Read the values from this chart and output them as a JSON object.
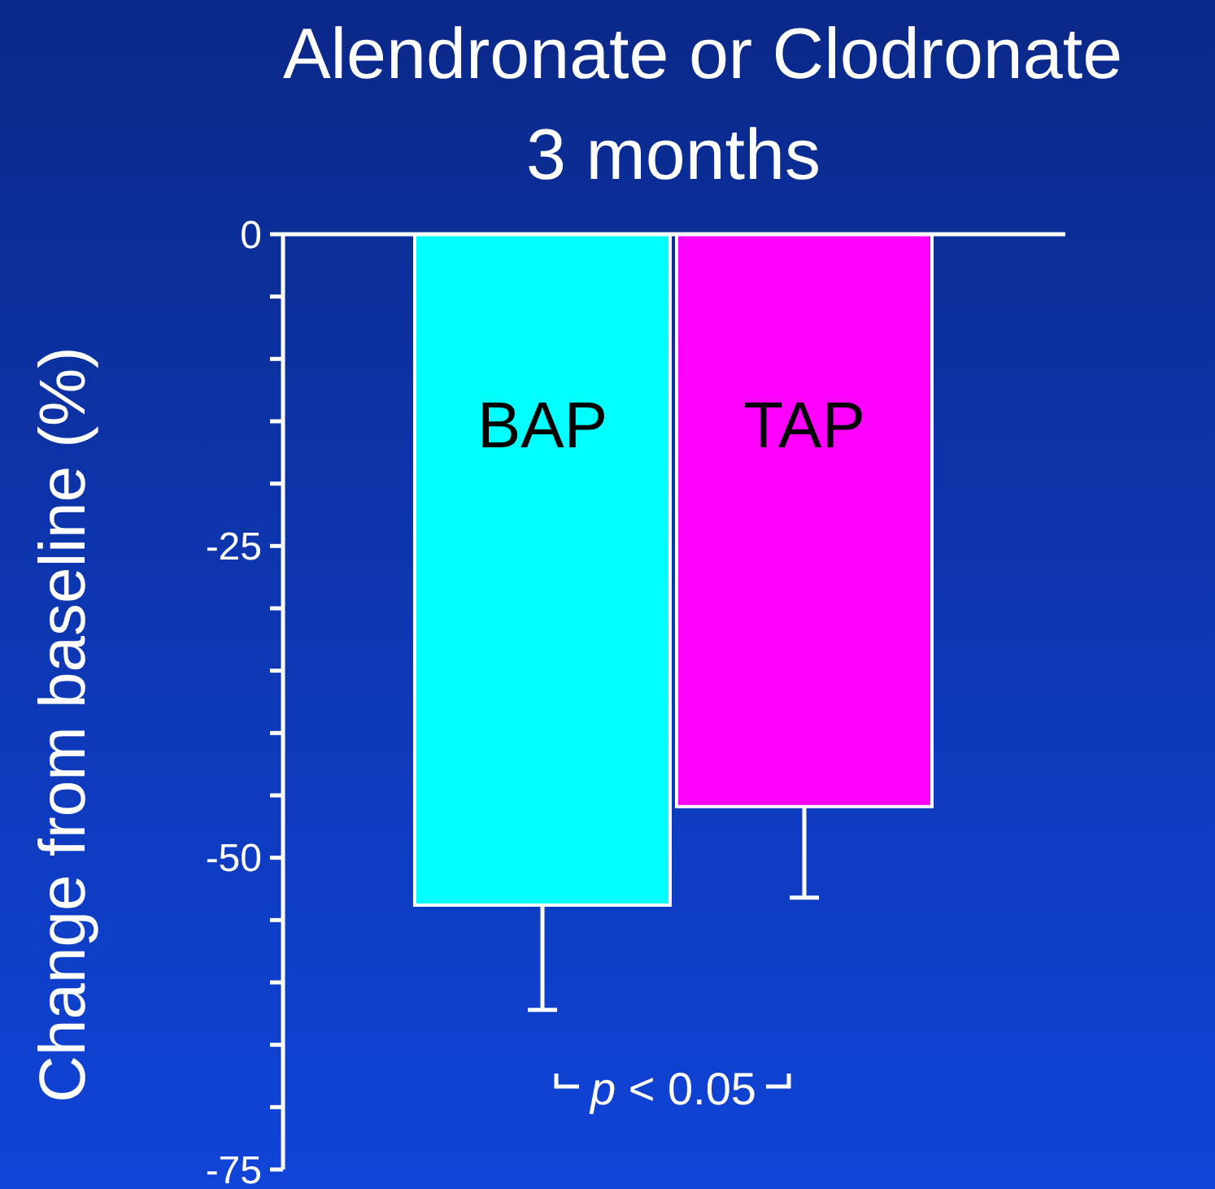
{
  "chart_data": {
    "type": "bar",
    "title": "Alendronate or Clodronate",
    "subtitle": "3 months",
    "ylabel": "Change from baseline (%)",
    "categories": [
      "BAP",
      "TAP"
    ],
    "values": [
      -53.8,
      -45.9
    ],
    "colors": [
      "#00ffff",
      "#ff00ff"
    ],
    "errors": [
      [
        -62.2,
        -53.8
      ],
      [
        -53.2,
        -45.9
      ]
    ],
    "ylim": [
      -75,
      0
    ],
    "yticks": [
      0,
      {
        "value": -5,
        "label": null
      },
      {
        "value": -10,
        "label": null
      },
      {
        "value": -15,
        "label": null
      },
      {
        "value": -20,
        "label": null
      },
      -25,
      {
        "value": -30,
        "label": null
      },
      {
        "value": -35,
        "label": null
      },
      {
        "value": -40,
        "label": null
      },
      {
        "value": -45,
        "label": null
      },
      -50,
      {
        "value": -55,
        "label": null
      },
      {
        "value": -60,
        "label": null
      },
      {
        "value": -65,
        "label": null
      },
      {
        "value": -70,
        "label": null
      },
      -75
    ],
    "annotations": [
      "p < 0.05"
    ],
    "grid": false
  }
}
